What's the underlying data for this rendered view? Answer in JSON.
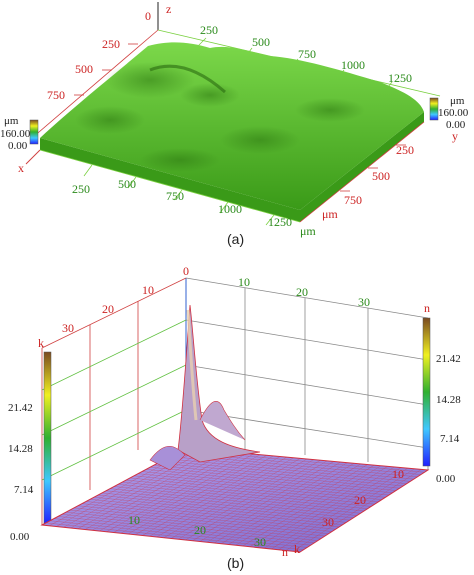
{
  "panel_a": {
    "caption": "(a)",
    "axis_letters": {
      "z": "z",
      "x": "x",
      "y": "y"
    },
    "z_top_tick": "0",
    "top_ticks": [
      "250",
      "500",
      "750",
      "1000",
      "1250"
    ],
    "left_ticks": [
      "250",
      "500",
      "750"
    ],
    "front_ticks": [
      "250",
      "500",
      "750",
      "1000",
      "1250"
    ],
    "right_ticks": [
      "250",
      "500",
      "750"
    ],
    "unit": "μm",
    "front_unit": "μm",
    "left_scale": {
      "unit": "μm",
      "max": "160.00",
      "min": "0.00"
    },
    "right_scale": {
      "unit": "μm",
      "max": "160.00",
      "min": "0.00"
    },
    "colors": {
      "surface": "#5cc52a",
      "surface_dark": "#2e7a12",
      "surface_light": "#8fe05a"
    }
  },
  "panel_b": {
    "caption": "(b)",
    "top_ticks_red": [
      "10",
      "20",
      "30"
    ],
    "top_zero": "0",
    "top_ticks_green": [
      "10",
      "20",
      "30"
    ],
    "right_axis_letter": "n",
    "left_axis_letter": "k",
    "colorbar_right": [
      "21.42",
      "14.28",
      "7.14",
      "0.00"
    ],
    "colorbar_left": [
      "21.42",
      "14.28",
      "7.14",
      "0.00"
    ],
    "bottom_ticks_green": [
      "10",
      "20",
      "30"
    ],
    "bottom_letter_n": "n",
    "bottom_letter_k": "k",
    "bottom_ticks_red": [
      "10",
      "20",
      "30"
    ],
    "colors": {
      "mesh": "#9a88dd",
      "peak": "#d9c0a0",
      "wire": "#d03040"
    }
  }
}
